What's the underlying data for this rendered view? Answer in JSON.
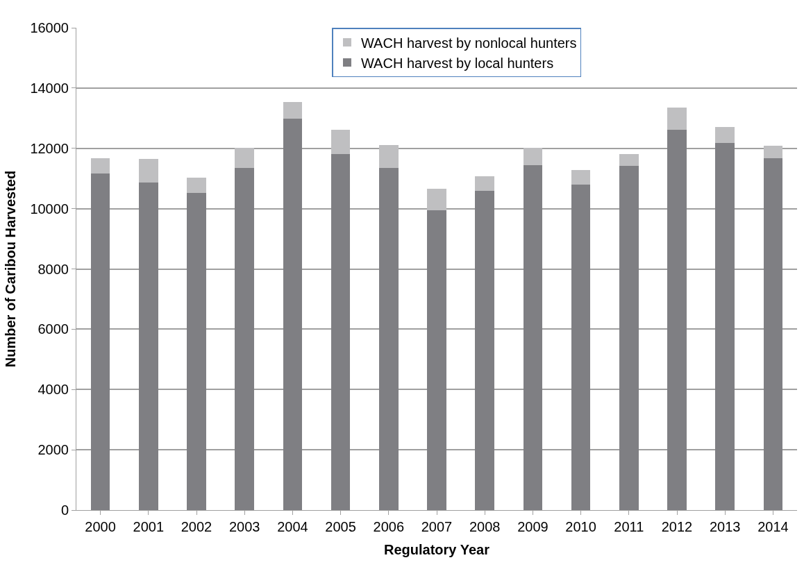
{
  "chart_data": {
    "type": "bar",
    "stacked": true,
    "xlabel": "Regulatory Year",
    "ylabel": "Number of Caribou Harvested",
    "categories": [
      "2000",
      "2001",
      "2002",
      "2003",
      "2004",
      "2005",
      "2006",
      "2007",
      "2008",
      "2009",
      "2010",
      "2011",
      "2012",
      "2013",
      "2014"
    ],
    "series": [
      {
        "name": "WACH harvest by local hunters",
        "color": "#7f7f83",
        "values": [
          11160,
          10860,
          10510,
          11340,
          12980,
          11820,
          11340,
          9940,
          10580,
          11450,
          10800,
          11430,
          12610,
          12180,
          11680
        ]
      },
      {
        "name": "WACH harvest by nonlocal hunters",
        "color": "#bfbfc1",
        "values": [
          520,
          790,
          510,
          680,
          550,
          790,
          760,
          710,
          490,
          570,
          480,
          370,
          740,
          520,
          400
        ]
      }
    ],
    "ylim": [
      0,
      16000
    ],
    "yticks": [
      0,
      2000,
      4000,
      6000,
      8000,
      10000,
      12000,
      14000,
      16000
    ],
    "grid": "y",
    "legend": "top"
  }
}
